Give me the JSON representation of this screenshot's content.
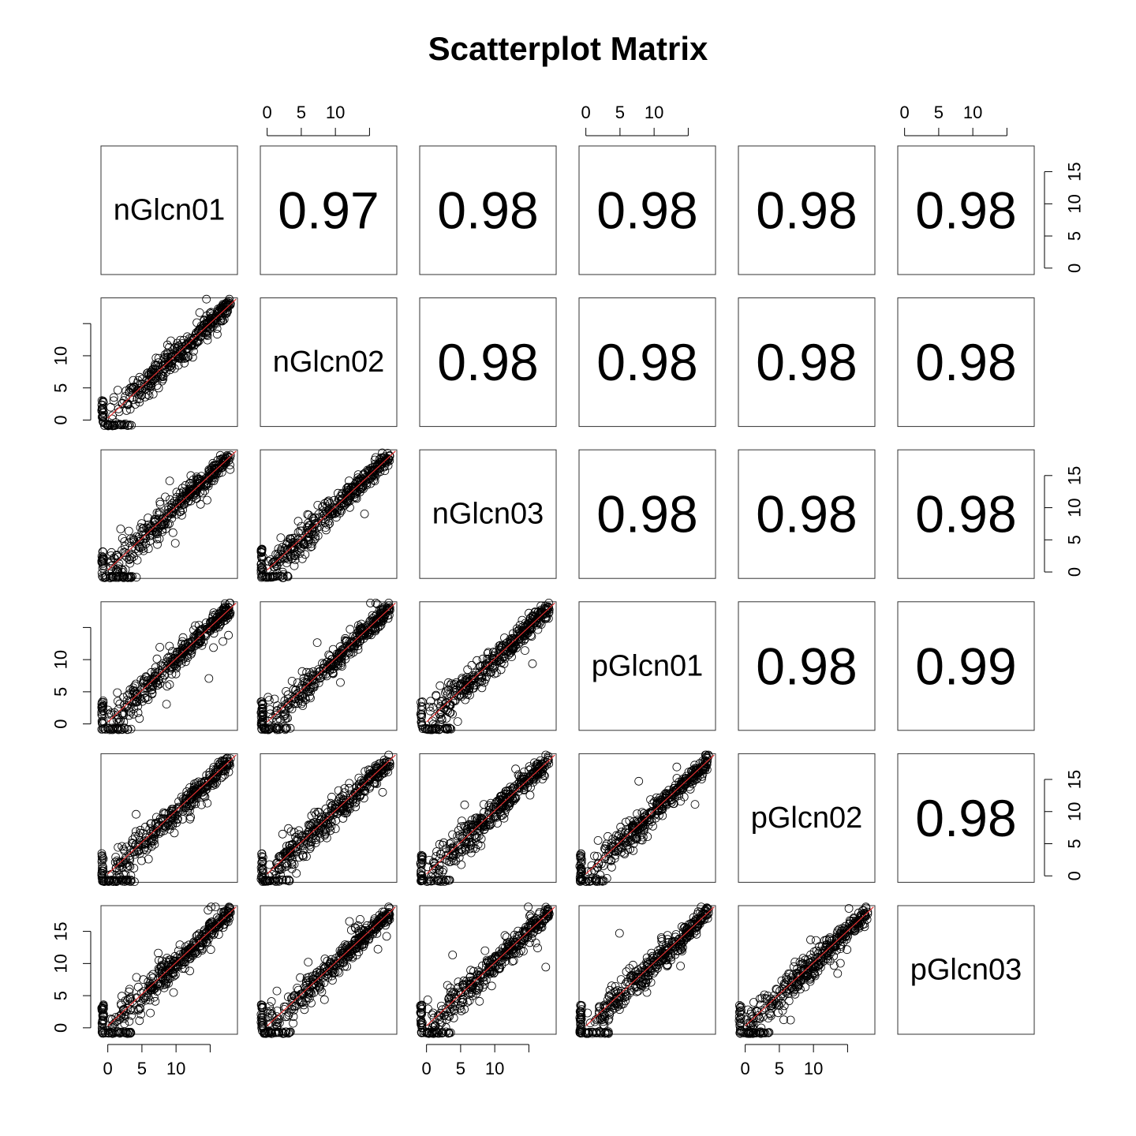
{
  "chart_data": {
    "type": "scatter",
    "title": "Scatterplot Matrix",
    "variables": [
      "nGlcn01",
      "nGlcn02",
      "nGlcn03",
      "pGlcn01",
      "pGlcn02",
      "pGlcn03"
    ],
    "axis_range": [
      -1,
      19
    ],
    "tick_values": [
      0,
      5,
      10,
      15
    ],
    "x_tick_labels": [
      "0",
      "5",
      "10"
    ],
    "y_tick_labels": [
      "0",
      "5",
      "10",
      "15"
    ],
    "upper_panel": "correlation",
    "lower_panel": "scatter with smoothed fit line",
    "correlations": [
      [
        null,
        "0.97",
        "0.98",
        "0.98",
        "0.98",
        "0.98"
      ],
      [
        null,
        null,
        "0.98",
        "0.98",
        "0.98",
        "0.98"
      ],
      [
        null,
        null,
        null,
        "0.98",
        "0.98",
        "0.98"
      ],
      [
        null,
        null,
        null,
        null,
        "0.98",
        "0.99"
      ],
      [
        null,
        null,
        null,
        null,
        null,
        "0.98"
      ],
      [
        null,
        null,
        null,
        null,
        null,
        null
      ]
    ],
    "point_color": "#000000",
    "fit_line_color": "#e03030",
    "grid": false
  }
}
